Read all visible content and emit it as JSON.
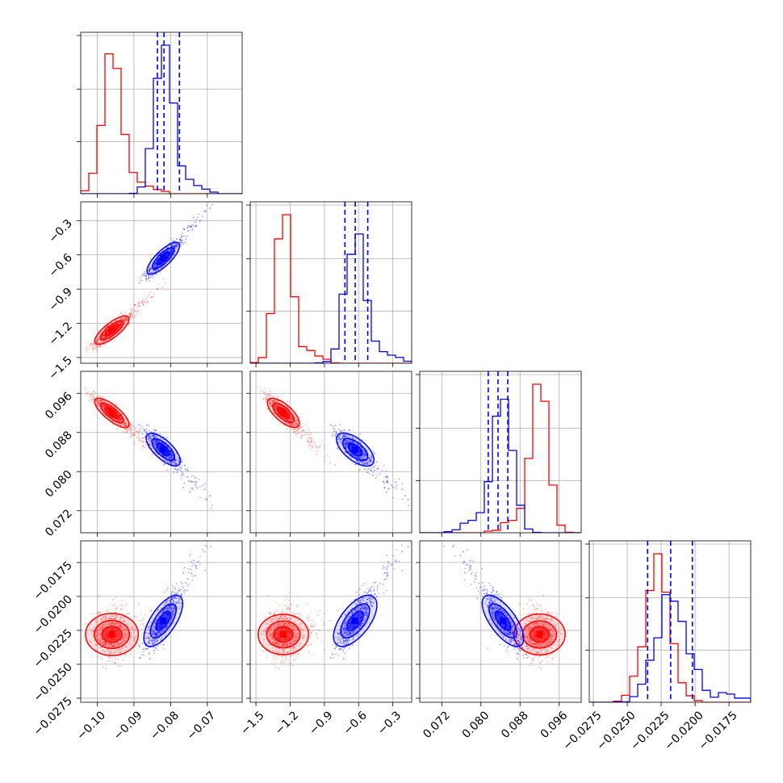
{
  "chart_data": {
    "type": "scatter",
    "kind": "corner-plot",
    "grid": true,
    "colors": {
      "red": "#ff0000",
      "blue": "#0000ff"
    },
    "parameters": [
      {
        "key": "p0",
        "range": [
          -0.1045,
          -0.0605
        ],
        "ticks": [
          -0.1,
          -0.09,
          -0.08,
          -0.07
        ],
        "tick_labels": [
          "−0.10",
          "−0.09",
          "−0.08",
          "−0.07"
        ]
      },
      {
        "key": "p1",
        "range": [
          -1.55,
          -0.135
        ],
        "ticks": [
          -1.5,
          -1.2,
          -0.9,
          -0.6,
          -0.3
        ],
        "tick_labels": [
          "−1.5",
          "−1.2",
          "−0.9",
          "−0.6",
          "−0.3"
        ]
      },
      {
        "key": "p2",
        "range": [
          0.0675,
          0.1005
        ],
        "ticks": [
          0.072,
          0.08,
          0.088,
          0.096
        ],
        "tick_labels": [
          "0.072",
          "0.080",
          "0.088",
          "0.096"
        ]
      },
      {
        "key": "p3",
        "range": [
          -0.0278,
          -0.0159
        ],
        "ticks": [
          -0.0275,
          -0.025,
          -0.0225,
          -0.02,
          -0.0175
        ],
        "tick_labels": [
          "−0.0275",
          "−0.0250",
          "−0.0225",
          "−0.0200",
          "−0.0175"
        ]
      }
    ],
    "series": [
      {
        "color": "#ff0000",
        "mean": [
          -0.096,
          -1.26,
          0.092,
          -0.0228
        ],
        "std": [
          0.0025,
          0.07,
          0.0017,
          0.0009
        ],
        "tail_slope": [
          0.35,
          0.4
        ]
      },
      {
        "color": "#0000ff",
        "mean": [
          -0.082,
          -0.63,
          0.0845,
          -0.0218
        ],
        "std": [
          0.0023,
          0.08,
          0.0019,
          0.0011
        ],
        "tail_slope": [
          0.3,
          0.25
        ]
      }
    ],
    "quantile_lines": [
      [
        -0.0836,
        -0.0818,
        -0.0776
      ],
      [
        -0.72,
        -0.63,
        -0.52
      ],
      [
        0.0815,
        0.0835,
        0.0855
      ],
      [
        -0.0235,
        -0.0218,
        -0.0202
      ]
    ],
    "diag_hist_ylim": [
      0,
      1.05
    ]
  }
}
